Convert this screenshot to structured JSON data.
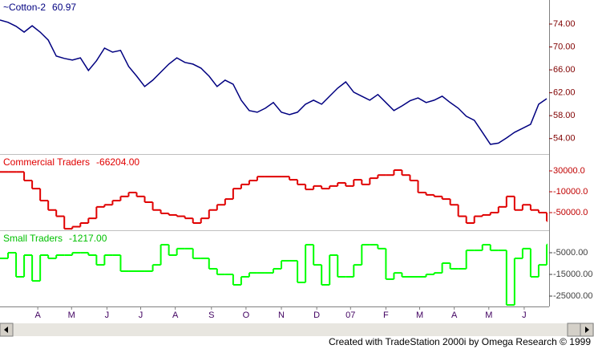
{
  "chart_data": [
    {
      "type": "line",
      "axis_color": "#800000",
      "series": [
        {
          "name": "~Cotton-2",
          "color": "#000080",
          "last": 60.97,
          "values": [
            74.7,
            74.3,
            73.6,
            72.6,
            73.7,
            72.6,
            71.2,
            68.4,
            68.0,
            67.7,
            68.1,
            65.9,
            67.6,
            69.8,
            69.1,
            69.4,
            66.6,
            64.9,
            63.1,
            64.2,
            65.6,
            67.0,
            68.1,
            67.3,
            67.0,
            66.3,
            64.9,
            63.1,
            64.2,
            63.5,
            60.7,
            58.9,
            58.6,
            59.3,
            60.3,
            58.6,
            58.2,
            58.6,
            60.0,
            60.7,
            60.0,
            61.4,
            62.8,
            63.9,
            62.1,
            61.4,
            60.7,
            61.7,
            60.3,
            58.9,
            59.7,
            60.6,
            61.1,
            60.3,
            60.7,
            61.4,
            60.3,
            59.3,
            57.9,
            57.2,
            55.1,
            53.0,
            53.2,
            54.1,
            55.1,
            55.8,
            56.5,
            60.0,
            60.97
          ]
        }
      ],
      "x": [
        0,
        1,
        2,
        3,
        4,
        5,
        6,
        7,
        8,
        9,
        10,
        11,
        12,
        13,
        14,
        15,
        16,
        17,
        18,
        19,
        20,
        21,
        22,
        23,
        24,
        25,
        26,
        27,
        28,
        29,
        30,
        31,
        32,
        33,
        34,
        35,
        36,
        37,
        38,
        39,
        40,
        41,
        42,
        43,
        44,
        45,
        46,
        47,
        48,
        49,
        50,
        51,
        52,
        53,
        54,
        55,
        56,
        57,
        58,
        59,
        60,
        61,
        62,
        63,
        64,
        65,
        66,
        67,
        68
      ],
      "xlim": [
        0,
        68.3
      ],
      "ylim": [
        51.3,
        78.2
      ],
      "yticks": [
        {
          "value": 74,
          "label": "74.00"
        },
        {
          "value": 70,
          "label": "70.00"
        },
        {
          "value": 66,
          "label": "66.00"
        },
        {
          "value": 62,
          "label": "62.00"
        },
        {
          "value": 58,
          "label": "58.00"
        },
        {
          "value": 54,
          "label": "54.00"
        }
      ]
    },
    {
      "type": "step",
      "axis_color": "#c00000",
      "series": [
        {
          "name": "Commercial Traders",
          "color": "#e00000",
          "last": {
            "value": -66204,
            "label": "-66204.00"
          },
          "values": [
            28000,
            28000,
            28000,
            11500,
            -4000,
            -27000,
            -45000,
            -57000,
            -81000,
            -77000,
            -70000,
            -61000,
            -39000,
            -35000,
            -27000,
            -19000,
            -11500,
            -19000,
            -30000,
            -45000,
            -51500,
            -54500,
            -57000,
            -61000,
            -70000,
            -61000,
            -45000,
            -35000,
            -24000,
            -4000,
            4000,
            11500,
            19000,
            19000,
            19000,
            19000,
            13000,
            4000,
            -5500,
            1000,
            -4000,
            1000,
            7000,
            1000,
            13000,
            4000,
            16000,
            22000,
            22000,
            31500,
            22000,
            11500,
            -11500,
            -16000,
            -19000,
            -24000,
            -35000,
            -57000,
            -70000,
            -57000,
            -54500,
            -50000,
            -39000,
            -19000,
            -45000,
            -35000,
            -45000,
            -50000,
            -66204
          ]
        }
      ],
      "x": [
        0,
        1,
        2,
        3,
        4,
        5,
        6,
        7,
        8,
        9,
        10,
        11,
        12,
        13,
        14,
        15,
        16,
        17,
        18,
        19,
        20,
        21,
        22,
        23,
        24,
        25,
        26,
        27,
        28,
        29,
        30,
        31,
        32,
        33,
        34,
        35,
        36,
        37,
        38,
        39,
        40,
        41,
        42,
        43,
        44,
        45,
        46,
        47,
        48,
        49,
        50,
        51,
        52,
        53,
        54,
        55,
        56,
        57,
        58,
        59,
        60,
        61,
        62,
        63,
        64,
        65,
        66,
        67,
        68
      ],
      "xlim": [
        0,
        68.3
      ],
      "ylim": [
        -83850,
        60770
      ],
      "yticks": [
        {
          "value": 30000,
          "label": "30000.0"
        },
        {
          "value": -10000,
          "label": "-10000.0"
        },
        {
          "value": -50000,
          "label": "-50000.0"
        }
      ]
    },
    {
      "type": "step",
      "axis_color": "#404040",
      "series": [
        {
          "name": "Small Traders",
          "color": "#00ff00",
          "last": {
            "value": -1217,
            "label": "-1217.00"
          },
          "values": [
            -7600,
            -5000,
            -16100,
            -6100,
            -18000,
            -6100,
            -7600,
            -6100,
            -6100,
            -5000,
            -5000,
            -6100,
            -10600,
            -6100,
            -6100,
            -13500,
            -13500,
            -13500,
            -13500,
            -10600,
            -1300,
            -6100,
            -3100,
            -3100,
            -7600,
            -7600,
            -12400,
            -15000,
            -15000,
            -19800,
            -16100,
            -14300,
            -14300,
            -14300,
            -12400,
            -8700,
            -8700,
            -18700,
            -1300,
            -10600,
            -19800,
            -6100,
            -16100,
            -16100,
            -10600,
            -1300,
            -1300,
            -3100,
            -17200,
            -14300,
            -16100,
            -16100,
            -16100,
            -15000,
            -14300,
            -9800,
            -12400,
            -12400,
            -3900,
            -3900,
            -1300,
            -3900,
            -3900,
            -29100,
            -7600,
            -3100,
            -16100,
            -10600,
            -1217
          ]
        }
      ],
      "x": [
        0,
        1,
        2,
        3,
        4,
        5,
        6,
        7,
        8,
        9,
        10,
        11,
        12,
        13,
        14,
        15,
        16,
        17,
        18,
        19,
        20,
        21,
        22,
        23,
        24,
        25,
        26,
        27,
        28,
        29,
        30,
        31,
        32,
        33,
        34,
        35,
        36,
        37,
        38,
        39,
        40,
        41,
        42,
        43,
        44,
        45,
        46,
        47,
        48,
        49,
        50,
        51,
        52,
        53,
        54,
        55,
        56,
        57,
        58,
        59,
        60,
        61,
        62,
        63,
        64,
        65,
        66,
        67,
        68
      ],
      "xlim": [
        0,
        68.3
      ],
      "ylim": [
        -29800,
        5000
      ],
      "yticks": [
        {
          "value": -5000,
          "label": "-5000.00"
        },
        {
          "value": -15000,
          "label": "-15000.00"
        },
        {
          "value": -25000,
          "label": "-25000.00"
        }
      ],
      "xticks": [
        {
          "value": 4.7,
          "label": "A"
        },
        {
          "value": 8.9,
          "label": "M"
        },
        {
          "value": 13.3,
          "label": "J"
        },
        {
          "value": 17.5,
          "label": "J"
        },
        {
          "value": 21.8,
          "label": "A"
        },
        {
          "value": 26.3,
          "label": "S"
        },
        {
          "value": 30.6,
          "label": "O"
        },
        {
          "value": 35.0,
          "label": "N"
        },
        {
          "value": 39.4,
          "label": "D"
        },
        {
          "value": 43.6,
          "label": "07"
        },
        {
          "value": 48.0,
          "label": "F"
        },
        {
          "value": 52.2,
          "label": "M"
        },
        {
          "value": 56.5,
          "label": "A"
        },
        {
          "value": 60.8,
          "label": "M"
        },
        {
          "value": 65.2,
          "label": "J"
        }
      ]
    }
  ],
  "footer": "Created with TradeStation 2000i by Omega Research © 1999"
}
